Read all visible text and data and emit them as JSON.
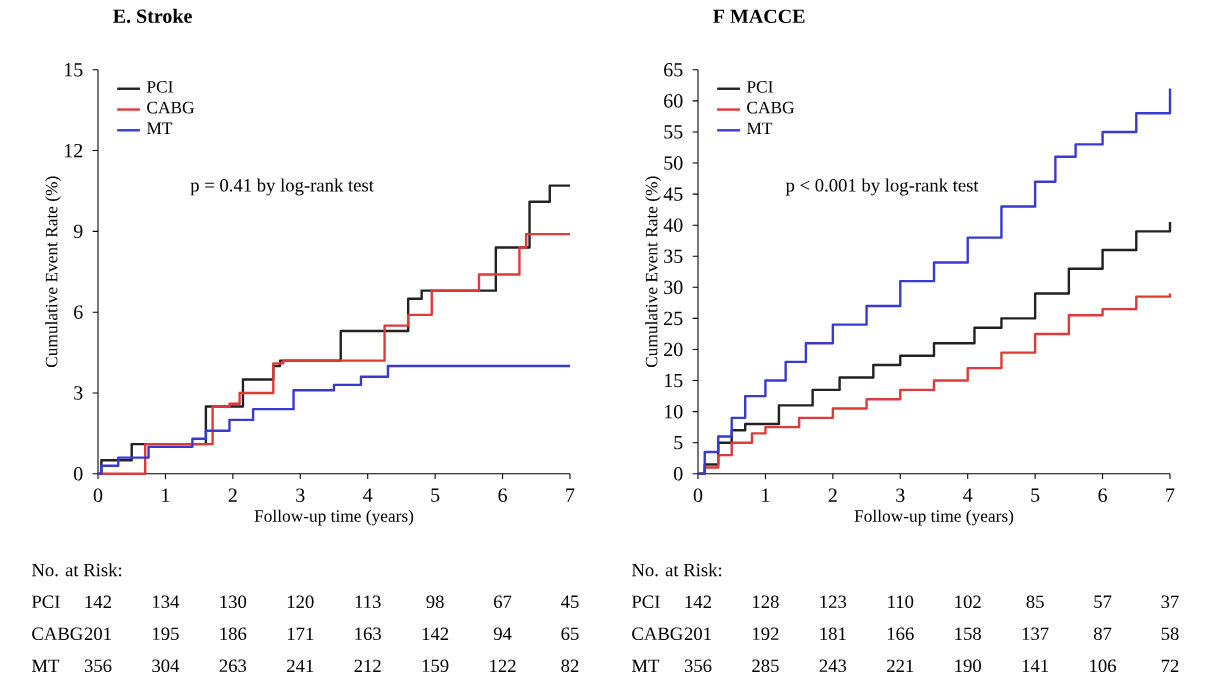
{
  "chart_data": [
    {
      "type": "step",
      "title": "E. Stroke",
      "xlabel": "Follow-up time (years)",
      "ylabel": "Cumulative Event Rate (%)",
      "xlim": [
        0,
        7
      ],
      "xticks": [
        0,
        1,
        2,
        3,
        4,
        5,
        6,
        7
      ],
      "ylim": [
        0,
        15
      ],
      "yticks": [
        0,
        3,
        6,
        9,
        12,
        15
      ],
      "legend": "top left",
      "series": [
        {
          "name": "PCI",
          "color": "#222222",
          "x": [
            0,
            0.05,
            0.5,
            1.6,
            2.15,
            2.6,
            2.7,
            3.6,
            4.6,
            4.8,
            5.9,
            6.4,
            6.7,
            7.0
          ],
          "values": [
            0,
            0.5,
            1.1,
            2.5,
            3.5,
            4.0,
            4.2,
            5.3,
            6.5,
            6.8,
            8.4,
            10.1,
            10.7,
            10.7
          ]
        },
        {
          "name": "CABG",
          "color": "#e0393a",
          "x": [
            0,
            0.7,
            1.7,
            1.95,
            2.1,
            2.6,
            2.75,
            4.25,
            4.6,
            4.95,
            5.65,
            6.25,
            6.35,
            7.0
          ],
          "values": [
            0,
            1.1,
            2.5,
            2.6,
            3.0,
            4.1,
            4.2,
            5.5,
            5.9,
            6.8,
            7.4,
            8.4,
            8.9,
            8.9
          ]
        },
        {
          "name": "MT",
          "color": "#3a3ad0",
          "x": [
            0,
            0.05,
            0.3,
            0.75,
            1.4,
            1.6,
            1.95,
            2.3,
            2.9,
            3.5,
            3.9,
            4.3,
            7.0
          ],
          "values": [
            0,
            0.3,
            0.6,
            1.0,
            1.3,
            1.6,
            2.0,
            2.4,
            3.1,
            3.3,
            3.6,
            4.0,
            4.0
          ]
        }
      ],
      "annotations": [
        "p = 0.41 by log-rank test",
        "No. at Risk:",
        "PCI",
        "142",
        "134",
        "130",
        "120",
        "113",
        "98",
        "67",
        "45",
        "CABG",
        "201",
        "195",
        "186",
        "171",
        "163",
        "142",
        "94",
        "65",
        "MT",
        "356",
        "304",
        "263",
        "241",
        "212",
        "159",
        "122",
        "82"
      ]
    },
    {
      "type": "step",
      "title": "F MACCE",
      "xlabel": "Follow-up time (years)",
      "ylabel": "Cumulative Event Rate (%)",
      "xlim": [
        0,
        7
      ],
      "xticks": [
        0,
        1,
        2,
        3,
        4,
        5,
        6,
        7
      ],
      "ylim": [
        0,
        65
      ],
      "yticks": [
        0,
        5,
        10,
        15,
        20,
        25,
        30,
        35,
        40,
        45,
        50,
        55,
        60,
        65
      ],
      "legend": "top left",
      "series": [
        {
          "name": "PCI",
          "color": "#222222",
          "x": [
            0,
            0.1,
            0.3,
            0.5,
            0.7,
            1.2,
            1.7,
            2.1,
            2.6,
            3.0,
            3.5,
            4.1,
            4.5,
            5.0,
            5.5,
            6.0,
            6.5,
            7.0
          ],
          "values": [
            0,
            1.5,
            5,
            7,
            8,
            11,
            13.5,
            15.5,
            17.5,
            19,
            21,
            23.5,
            25,
            29,
            33,
            36,
            39,
            40.5
          ]
        },
        {
          "name": "CABG",
          "color": "#e0393a",
          "x": [
            0,
            0.1,
            0.3,
            0.5,
            0.8,
            1.0,
            1.5,
            2.0,
            2.5,
            3.0,
            3.5,
            4.0,
            4.5,
            5.0,
            5.5,
            6.0,
            6.5,
            7.0
          ],
          "values": [
            0,
            1,
            3,
            5,
            6.5,
            7.5,
            9,
            10.5,
            12,
            13.5,
            15,
            17,
            19.5,
            22.5,
            25.5,
            26.5,
            28.5,
            29
          ]
        },
        {
          "name": "MT",
          "color": "#3a3ad0",
          "x": [
            0,
            0.1,
            0.3,
            0.5,
            0.7,
            1.0,
            1.3,
            1.6,
            2.0,
            2.5,
            3.0,
            3.5,
            4.0,
            4.5,
            5.0,
            5.3,
            5.6,
            6.0,
            6.5,
            7.0
          ],
          "values": [
            0,
            3.5,
            6,
            9,
            12.5,
            15,
            18,
            21,
            24,
            27,
            31,
            34,
            38,
            43,
            47,
            51,
            53,
            55,
            58,
            62
          ]
        }
      ],
      "annotations": [
        "p < 0.001 by log-rank test",
        "No. at Risk:",
        "PCI",
        "142",
        "128",
        "123",
        "110",
        "102",
        "85",
        "57",
        "37",
        "CABG",
        "201",
        "192",
        "181",
        "166",
        "158",
        "137",
        "87",
        "58",
        "MT",
        "356",
        "285",
        "243",
        "221",
        "190",
        "141",
        "106",
        "72"
      ]
    }
  ]
}
